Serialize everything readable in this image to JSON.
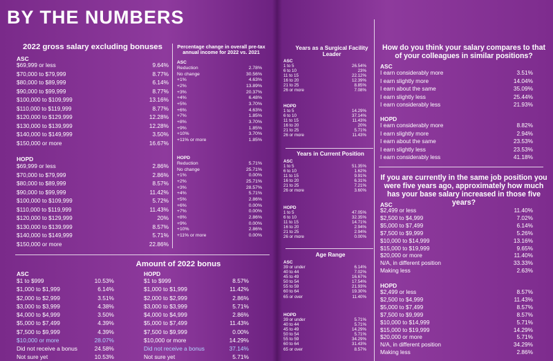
{
  "header": {
    "title": "BY THE NUMBERS"
  },
  "gross": {
    "title": "2022 gross salary excluding bonuses",
    "groups": [
      {
        "label": "ASC",
        "rows": [
          {
            "label": "$69,999 or less",
            "value": "9.64%"
          },
          {
            "label": "$70,000 to $79,999",
            "value": "8.77%"
          },
          {
            "label": "$80,000 to $89,999",
            "value": "6.14%"
          },
          {
            "label": "$90,000 to $99,999",
            "value": "8.77%"
          },
          {
            "label": "$100,000 to $109,999",
            "value": "13.16%"
          },
          {
            "label": "$110,000 to $119,999",
            "value": "8.77%"
          },
          {
            "label": "$120,000 to $129,999",
            "value": "12.28%"
          },
          {
            "label": "$130,000 to $139,999",
            "value": "12.28%"
          },
          {
            "label": "$140,000 to $149,999",
            "value": "3.50%"
          },
          {
            "label": "$150,000 or more",
            "value": "16.67%"
          }
        ]
      },
      {
        "label": "HOPD",
        "rows": [
          {
            "label": "$69,999 or less",
            "value": "2.86%"
          },
          {
            "label": "$70,000 to $79,999",
            "value": "2.86%"
          },
          {
            "label": "$80,000 to $89,999",
            "value": "8.57%"
          },
          {
            "label": "$90,000 to $99,999",
            "value": "11.42%"
          },
          {
            "label": "$100,000 to $109,999",
            "value": "5.72%"
          },
          {
            "label": "$110,000 to $119,999",
            "value": "11.43%"
          },
          {
            "label": "$120,000 to $129,999",
            "value": "20%"
          },
          {
            "label": "$130,000 to $139,999",
            "value": "8.57%"
          },
          {
            "label": "$140,000 to $149,999",
            "value": "5.71%"
          },
          {
            "label": "$150,000 or more",
            "value": "22.86%"
          }
        ]
      }
    ]
  },
  "pct_change": {
    "title": "Percentage change in overall pre-tax annual income for 2022 vs. 2021",
    "groups": [
      {
        "label": "ASC",
        "rows": [
          {
            "label": "Reduction",
            "value": "2.78%"
          },
          {
            "label": "No change",
            "value": "30.56%"
          },
          {
            "label": "+1%",
            "value": "4.63%"
          },
          {
            "label": "+2%",
            "value": "13.89%"
          },
          {
            "label": "+3%",
            "value": "20.37%"
          },
          {
            "label": "+4%",
            "value": "6.48%"
          },
          {
            "label": "+5%",
            "value": "3.70%"
          },
          {
            "label": "+6%",
            "value": "4.63%"
          },
          {
            "label": "+7%",
            "value": "1.85%"
          },
          {
            "label": "+8%",
            "value": "3.70%"
          },
          {
            "label": "+9%",
            "value": "1.85%"
          },
          {
            "label": "+10%",
            "value": "3.70%"
          },
          {
            "label": "+11% or more",
            "value": "1.85%"
          }
        ]
      },
      {
        "label": "HOPD",
        "rows": [
          {
            "label": "Reduction",
            "value": "5.71%"
          },
          {
            "label": "No change",
            "value": "25.71%"
          },
          {
            "label": "+1%",
            "value": "0.00%"
          },
          {
            "label": "+2%",
            "value": "25.71%"
          },
          {
            "label": "+3%",
            "value": "28.57%"
          },
          {
            "label": "+4%",
            "value": "5.71%"
          },
          {
            "label": "+5%",
            "value": "2.86%"
          },
          {
            "label": "+6%",
            "value": "0.00%"
          },
          {
            "label": "+7%",
            "value": "0.00%"
          },
          {
            "label": "+8%",
            "value": "2.86%"
          },
          {
            "label": "+9%",
            "value": "0.00%"
          },
          {
            "label": "+10%",
            "value": "2.86%"
          },
          {
            "label": "+11% or more",
            "value": "0.00%"
          }
        ]
      }
    ]
  },
  "bonus": {
    "title": "Amount of 2022 bonus",
    "groups": [
      {
        "label": "ASC",
        "rows": [
          {
            "label": "$1 to $999",
            "value": "10.53%"
          },
          {
            "label": "$1,000 to $1,999",
            "value": "6.14%"
          },
          {
            "label": "$2,000 to $2,999",
            "value": "3.51%"
          },
          {
            "label": "$3,000 to $3,999",
            "value": "4.38%"
          },
          {
            "label": "$4,000 to $4,999",
            "value": "3.50%"
          },
          {
            "label": "$5,000 to $7,499",
            "value": "4.39%"
          },
          {
            "label": "$7,500 to $9,999",
            "value": "4.39%"
          },
          {
            "label": "$10,000 or more",
            "value": "28.07%",
            "hl": true
          },
          {
            "label": "Did not receive a bonus",
            "value": "24.58%"
          },
          {
            "label": "Not sure yet",
            "value": "10.53%"
          }
        ]
      },
      {
        "label": "HOPD",
        "rows": [
          {
            "label": "$1 to $999",
            "value": "8.57%"
          },
          {
            "label": "$1,000 to $1,999",
            "value": "11.42%"
          },
          {
            "label": "$2,000 to $2,999",
            "value": "2.86%"
          },
          {
            "label": "$3,000 to $3,999",
            "value": "5.71%"
          },
          {
            "label": "$4,000 to $4,999",
            "value": "2.86%"
          },
          {
            "label": "$5,000 to $7,499",
            "value": "11.43%"
          },
          {
            "label": "$7,500 to $9,999",
            "value": "0.00%"
          },
          {
            "label": "$10,000 or more",
            "value": "14.29%"
          },
          {
            "label": "Did not receive a bonus",
            "value": "37.14%",
            "hl": true
          },
          {
            "label": "Not sure yet",
            "value": "5.71%"
          }
        ]
      }
    ]
  },
  "years_leader": {
    "title": "Years as a Surgical Facility Leader",
    "groups": [
      {
        "label": "ASC",
        "rows": [
          {
            "label": "1 to 5",
            "value": "26.54%"
          },
          {
            "label": "6 to 10",
            "value": "23%"
          },
          {
            "label": "11 to 15",
            "value": "22.12%"
          },
          {
            "label": "16 to 20",
            "value": "12.39%"
          },
          {
            "label": "21 to 25",
            "value": "8.85%"
          },
          {
            "label": "26 or more",
            "value": "7.08%"
          }
        ]
      },
      {
        "label": "HOPD",
        "rows": [
          {
            "label": "1 to 5",
            "value": "14.29%"
          },
          {
            "label": "6 to 10",
            "value": "37.14%"
          },
          {
            "label": "11 to 15",
            "value": "11.43%"
          },
          {
            "label": "16 to 20",
            "value": "20%"
          },
          {
            "label": "21 to 25",
            "value": "5.71%"
          },
          {
            "label": "26 or more",
            "value": "11.43%"
          }
        ]
      }
    ]
  },
  "years_position": {
    "title": "Years in Current Position",
    "groups": [
      {
        "label": "ASC",
        "rows": [
          {
            "label": "1 to 5",
            "value": "51.35%"
          },
          {
            "label": "6 to 10",
            "value": "1.62%"
          },
          {
            "label": "11 to 15",
            "value": "9.91%"
          },
          {
            "label": "16 to 20",
            "value": "6.31%"
          },
          {
            "label": "21 to 25",
            "value": "7.21%"
          },
          {
            "label": "26 or more",
            "value": "3.60%"
          }
        ]
      },
      {
        "label": "HOPD",
        "rows": [
          {
            "label": "1 to 5",
            "value": "47.05%"
          },
          {
            "label": "6 to 10",
            "value": "32.35%"
          },
          {
            "label": "11 to 15",
            "value": "14.71%"
          },
          {
            "label": "16 to 20",
            "value": "2.94%"
          },
          {
            "label": "21 to 25",
            "value": "2.94%"
          },
          {
            "label": "26 or more",
            "value": "0.00%"
          }
        ]
      }
    ]
  },
  "age": {
    "title": "Age Range",
    "groups": [
      {
        "label": "ASC",
        "rows": [
          {
            "label": "39 or under",
            "value": "6.14%"
          },
          {
            "label": "40 to 44",
            "value": "7.02%"
          },
          {
            "label": "45 to 49",
            "value": "16.67%"
          },
          {
            "label": "50 to 54",
            "value": "17.54%"
          },
          {
            "label": "55 to 59",
            "value": "21.93%"
          },
          {
            "label": "60 to 64",
            "value": "19.30%"
          },
          {
            "label": "65 or over",
            "value": "11.40%"
          }
        ]
      },
      {
        "label": "HOPD",
        "rows": [
          {
            "label": "39 or under",
            "value": "5.71%"
          },
          {
            "label": "40 to 44",
            "value": "5.71%"
          },
          {
            "label": "45 to 49",
            "value": "14.29%"
          },
          {
            "label": "50 to 54",
            "value": "5.71%"
          },
          {
            "label": "55 to 59",
            "value": "34.29%"
          },
          {
            "label": "60 to 64",
            "value": "31.43%"
          },
          {
            "label": "65 or over",
            "value": "8.57%"
          }
        ]
      }
    ]
  },
  "compare": {
    "title": "How do you think your salary compares to that of your colleagues in similar positions?",
    "groups": [
      {
        "label": "ASC",
        "rows": [
          {
            "label": "I earn considerably more",
            "value": "3.51%"
          },
          {
            "label": "I earn slightly more",
            "value": "14.04%"
          },
          {
            "label": "I earn about the same",
            "value": "35.09%"
          },
          {
            "label": "I earn slightly less",
            "value": "25.44%"
          },
          {
            "label": "I earn considerably less",
            "value": "21.93%"
          }
        ]
      },
      {
        "label": "HOPD",
        "rows": [
          {
            "label": "I earn considerably more",
            "value": "8.82%"
          },
          {
            "label": "I earn slightly more",
            "value": "2.94%"
          },
          {
            "label": "I earn about the same",
            "value": "23.53%"
          },
          {
            "label": "I earn slightly less",
            "value": "23.53%"
          },
          {
            "label": "I earn considerably less",
            "value": "41.18%"
          }
        ]
      }
    ]
  },
  "increase": {
    "title": "If you are currently in the same job position you were five years ago, approximately how much has your base salary increased in those five years?",
    "groups": [
      {
        "label": "ASC",
        "rows": [
          {
            "label": "$2,499 or less",
            "value": "11.40%"
          },
          {
            "label": "$2,500 to $4,999",
            "value": "7.02%"
          },
          {
            "label": "$5,000 to $7,499",
            "value": "6.14%"
          },
          {
            "label": "$7,500 to $9,999",
            "value": "5.26%"
          },
          {
            "label": "$10,000 to $14,999",
            "value": "13.16%"
          },
          {
            "label": "$15,000 to $19,999",
            "value": "9.65%"
          },
          {
            "label": "$20,000 or more",
            "value": "11.40%"
          },
          {
            "label": "N/A, in different position",
            "value": "33.33%"
          },
          {
            "label": "Making less",
            "value": "2.63%"
          }
        ]
      },
      {
        "label": "HOPD",
        "rows": [
          {
            "label": "$2,499 or less",
            "value": "8.57%"
          },
          {
            "label": "$2,500 to $4,999",
            "value": "11.43%"
          },
          {
            "label": "$5,000 to $7,499",
            "value": "8.57%"
          },
          {
            "label": "$7,500 to $9,999",
            "value": "8.57%"
          },
          {
            "label": "$10,000 to $14,999",
            "value": "5.71%"
          },
          {
            "label": "$15,000 to $19,999",
            "value": "14.29%"
          },
          {
            "label": "$20,000 or more",
            "value": "5.71%"
          },
          {
            "label": "N/A, in different position",
            "value": "34.29%"
          },
          {
            "label": "Making less",
            "value": "2.86%"
          }
        ]
      }
    ]
  },
  "colors": {
    "background": "#7c2a8c",
    "text": "#ffffff",
    "highlight": "#b2d4ff"
  }
}
